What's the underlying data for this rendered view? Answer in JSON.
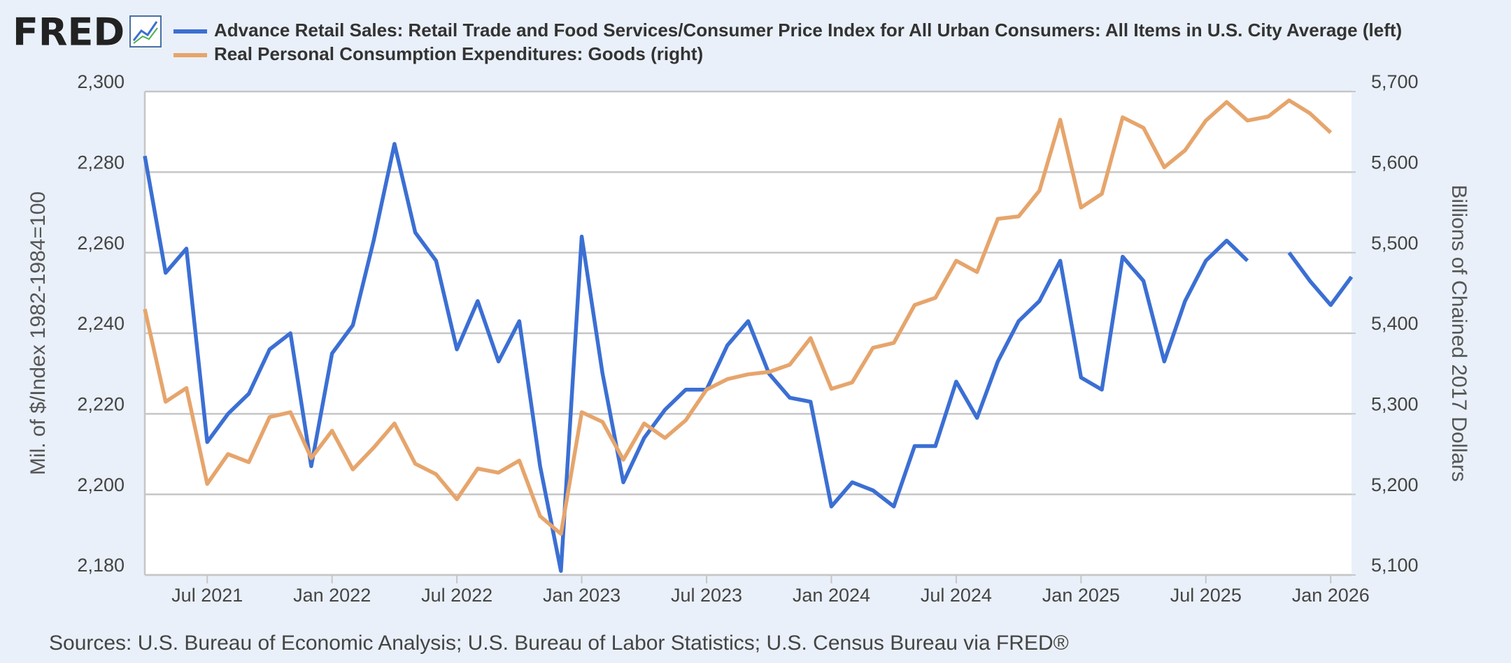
{
  "logo": "FRED",
  "chart_data": {
    "type": "line",
    "y_label": "Mil. of $/Index 1982-1984=100",
    "y2_label": "Billions of Chained 2017 Dollars",
    "source": "Sources: U.S. Bureau of Economic Analysis; U.S. Bureau of Labor Statistics; U.S. Census Bureau via FRED®",
    "x": [
      "2021-04",
      "2021-05",
      "2021-06",
      "2021-07",
      "2021-08",
      "2021-09",
      "2021-10",
      "2021-11",
      "2021-12",
      "2022-01",
      "2022-02",
      "2022-03",
      "2022-04",
      "2022-05",
      "2022-06",
      "2022-07",
      "2022-08",
      "2022-09",
      "2022-10",
      "2022-11",
      "2022-12",
      "2023-01",
      "2023-02",
      "2023-03",
      "2023-04",
      "2023-05",
      "2023-06",
      "2023-07",
      "2023-08",
      "2023-09",
      "2023-10",
      "2023-11",
      "2023-12",
      "2024-01",
      "2024-02",
      "2024-03",
      "2024-04",
      "2024-05",
      "2024-06",
      "2024-07",
      "2024-08",
      "2024-09",
      "2024-10",
      "2024-11",
      "2024-12",
      "2025-01",
      "2025-02",
      "2025-03",
      "2025-04",
      "2025-05",
      "2025-06",
      "2025-07",
      "2025-08",
      "2025-09",
      "2025-10",
      "2025-11",
      "2025-12",
      "2026-01",
      "2026-02"
    ],
    "xticks": [
      {
        "value": "2021-07",
        "label": "Jul 2021"
      },
      {
        "value": "2022-01",
        "label": "Jan 2022"
      },
      {
        "value": "2022-07",
        "label": "Jul 2022"
      },
      {
        "value": "2023-01",
        "label": "Jan 2023"
      },
      {
        "value": "2023-07",
        "label": "Jul 2023"
      },
      {
        "value": "2024-01",
        "label": "Jan 2024"
      },
      {
        "value": "2024-07",
        "label": "Jul 2024"
      },
      {
        "value": "2025-01",
        "label": "Jan 2025"
      },
      {
        "value": "2025-07",
        "label": "Jul 2025"
      },
      {
        "value": "2026-01",
        "label": "Jan 2026"
      }
    ],
    "ylim": [
      2180,
      2300
    ],
    "yticks": [
      {
        "value": 2180,
        "label": "2,180"
      },
      {
        "value": 2200,
        "label": "2,200"
      },
      {
        "value": 2220,
        "label": "2,220"
      },
      {
        "value": 2240,
        "label": "2,240"
      },
      {
        "value": 2260,
        "label": "2,260"
      },
      {
        "value": 2280,
        "label": "2,280"
      },
      {
        "value": 2300,
        "label": "2,300"
      }
    ],
    "y2lim": [
      5100,
      5700
    ],
    "y2ticks": [
      {
        "value": 5100,
        "label": "5,100"
      },
      {
        "value": 5200,
        "label": "5,200"
      },
      {
        "value": 5300,
        "label": "5,300"
      },
      {
        "value": 5400,
        "label": "5,400"
      },
      {
        "value": 5500,
        "label": "5,500"
      },
      {
        "value": 5600,
        "label": "5,600"
      },
      {
        "value": 5700,
        "label": "5,700"
      }
    ],
    "grid": true,
    "series": [
      {
        "name": "Advance Retail Sales: Retail Trade and Food Services/Consumer Price Index for All Urban Consumers: All Items in U.S. City Average (left)",
        "color": "#3b6fd3",
        "axis": "y",
        "values": [
          2284,
          2255,
          2261,
          2213,
          2220,
          2225,
          2236,
          2240,
          2207,
          2235,
          2242,
          2263,
          2287,
          2265,
          2258,
          2236,
          2248,
          2233,
          2243,
          2207,
          2181,
          2264,
          2230,
          2203,
          2214,
          2221,
          2226,
          2226,
          2237,
          2243,
          2230,
          2224,
          2223,
          2197,
          2203,
          2201,
          2197,
          2212,
          2212,
          2228,
          2219,
          2233,
          2243,
          2248,
          2258,
          2229,
          2226,
          2259,
          2253,
          2233,
          2248,
          2258,
          2263,
          2258,
          null,
          2260,
          2253,
          2247,
          2254
        ]
      },
      {
        "name": "Real Personal Consumption Expenditures: Goods (right)",
        "color": "#e6a56c",
        "axis": "y2",
        "values": [
          5430,
          5315,
          5332,
          5213,
          5250,
          5240,
          5296,
          5302,
          5245,
          5279,
          5231,
          5258,
          5288,
          5238,
          5225,
          5194,
          5232,
          5227,
          5242,
          5173,
          5151,
          5302,
          5290,
          5243,
          5288,
          5270,
          5292,
          5330,
          5343,
          5349,
          5352,
          5361,
          5394,
          5331,
          5339,
          5382,
          5388,
          5435,
          5444,
          5490,
          5476,
          5542,
          5545,
          5577,
          5665,
          5556,
          5573,
          5668,
          5655,
          5606,
          5627,
          5664,
          5687,
          5664,
          5669,
          5689,
          5673,
          5649,
          null
        ]
      }
    ]
  }
}
